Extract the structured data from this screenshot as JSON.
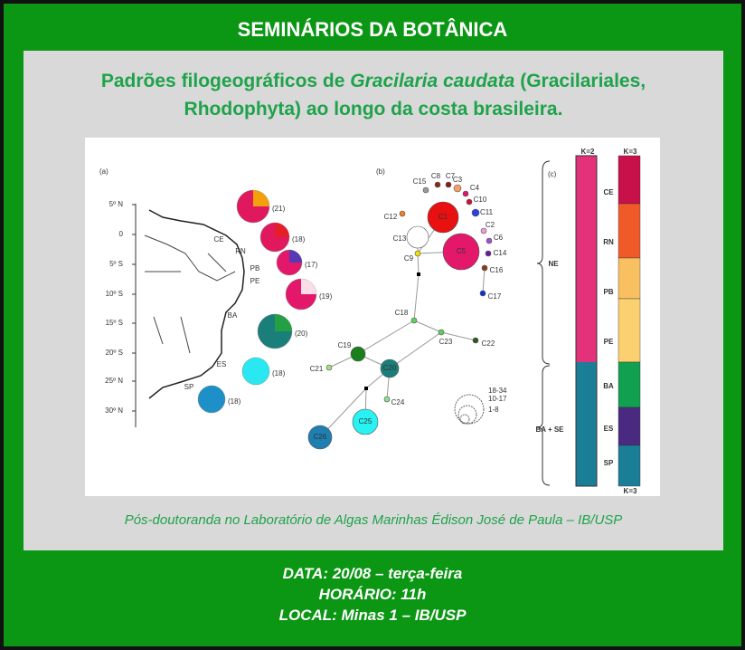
{
  "header": {
    "title": "SEMINÁRIOS DA BOTÂNICA"
  },
  "talk": {
    "title_before": "Padrões filogeográficos de ",
    "title_italic": "Gracilaria caudata",
    "title_after": " (Gracilariales, Rhodophyta) ao longo da costa brasileira.",
    "speaker": "Pós-doutoranda no Laboratório de Algas Marinhas Édison José de Paula – IB/USP"
  },
  "figure": {
    "panels": [
      "(a)",
      "(b)",
      "(c)"
    ],
    "latitudes": [
      "5º N",
      "0",
      "5º S",
      "10º S",
      "15º S",
      "20º S",
      "25º N",
      "30º N"
    ],
    "states": [
      {
        "label": "CE",
        "n": "(21)"
      },
      {
        "label": "RN",
        "n": "(18)"
      },
      {
        "label": "PB",
        "n": "(17)"
      },
      {
        "label": "PE",
        "n": "(19)"
      },
      {
        "label": "BA",
        "n": "(20)"
      },
      {
        "label": "ES",
        "n": "(18)"
      },
      {
        "label": "SP",
        "n": "(18)"
      }
    ],
    "haplotypes": [
      "C1",
      "C2",
      "C3",
      "C4",
      "C5",
      "C6",
      "C7",
      "C8",
      "C9",
      "C10",
      "C11",
      "C12",
      "C13",
      "C14",
      "C15",
      "C16",
      "C17",
      "C18",
      "C19",
      "C20",
      "C21",
      "C22",
      "C23",
      "C24",
      "C25",
      "C26"
    ],
    "size_legend": [
      "18-34",
      "10-17",
      "1-8"
    ],
    "structure": {
      "k2": "K=2",
      "k3": "K=3",
      "k3_bottom": "K=3",
      "groups": [
        "NE",
        "BA + SE"
      ],
      "populations": [
        "CE",
        "RN",
        "PB",
        "PE",
        "BA",
        "ES",
        "SP"
      ]
    }
  },
  "footer": {
    "date": "DATA: 20/08 – terça-feira",
    "time": "HORÁRIO: 11h",
    "place": "LOCAL: Minas 1 – IB/USP"
  }
}
